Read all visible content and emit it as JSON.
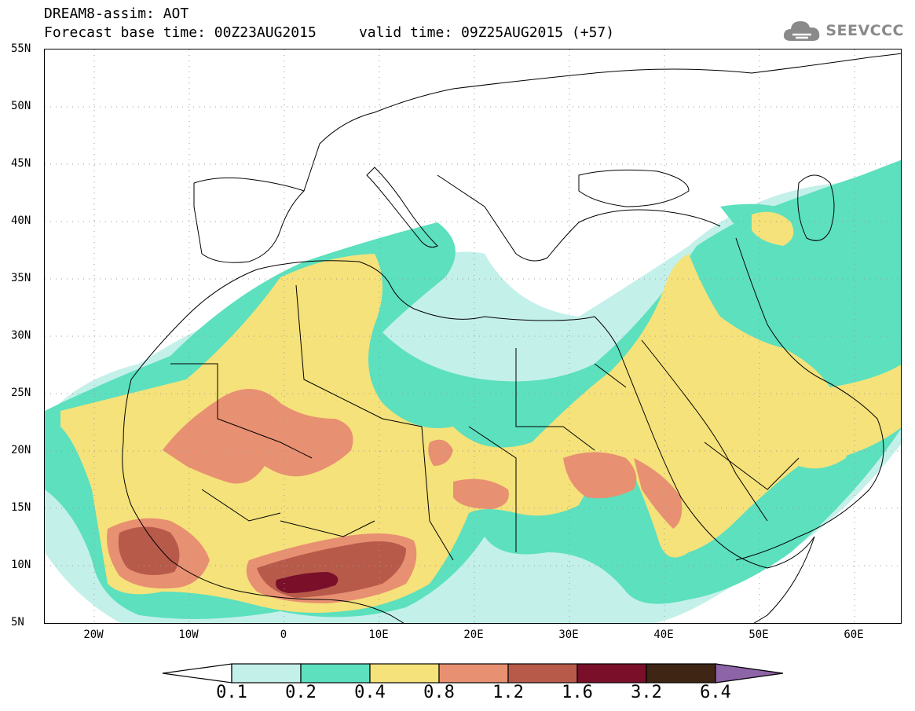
{
  "header": {
    "title_line1": "DREAM8-assim: AOT",
    "title_line2": "Forecast base time: 00Z23AUG2015     valid time: 09Z25AUG2015 (+57)",
    "logo_text": "SEEVCCC",
    "logo_icon": "cloud-icon"
  },
  "map": {
    "projection": "lat-lon",
    "region": {
      "lon_min": -25,
      "lon_max": 65,
      "lat_min": 5,
      "lat_max": 55
    },
    "lat_labels": [
      "55N",
      "50N",
      "45N",
      "40N",
      "35N",
      "30N",
      "25N",
      "20N",
      "15N",
      "10N",
      "5N"
    ],
    "lon_labels": [
      "20W",
      "10W",
      "0",
      "10E",
      "20E",
      "30E",
      "40E",
      "50E",
      "60E"
    ],
    "field": "Aerosol Optical Thickness (AOT)"
  },
  "colorbar": {
    "levels": [
      "0.1",
      "0.2",
      "0.4",
      "0.8",
      "1.2",
      "1.6",
      "3.2",
      "6.4"
    ],
    "colors": [
      "#c4f0ea",
      "#5ce0be",
      "#f5e27a",
      "#e89072",
      "#b85a4a",
      "#7a0f2a",
      "#3e2514",
      "#8e64a8"
    ],
    "under_color": "#ffffff"
  }
}
